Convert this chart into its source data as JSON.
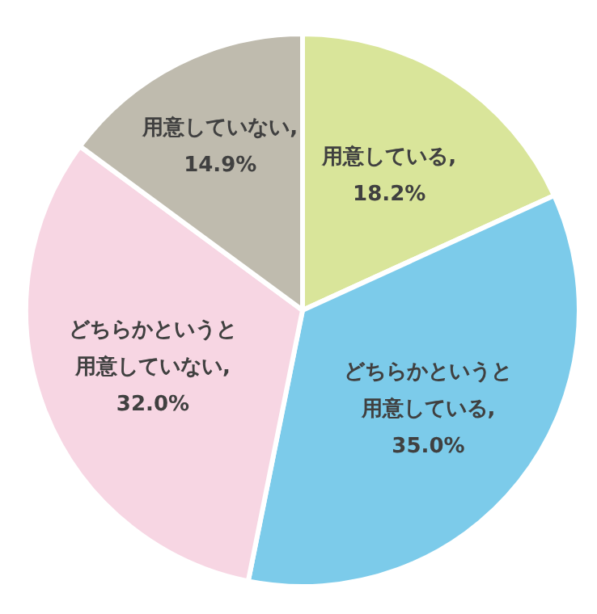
{
  "chart_data": {
    "type": "pie",
    "categories": [
      "用意している",
      "どちらかというと用意している",
      "どちらかというと用意していない",
      "用意していない"
    ],
    "values": [
      18.2,
      35.0,
      32.0,
      14.9
    ],
    "value_labels": [
      ", 18.2%",
      ", 35.0%",
      ", 32.0%",
      ", 14.9%"
    ],
    "colors": [
      "#d9e59a",
      "#7ccbea",
      "#f7d6e3",
      "#bfbbae"
    ]
  }
}
